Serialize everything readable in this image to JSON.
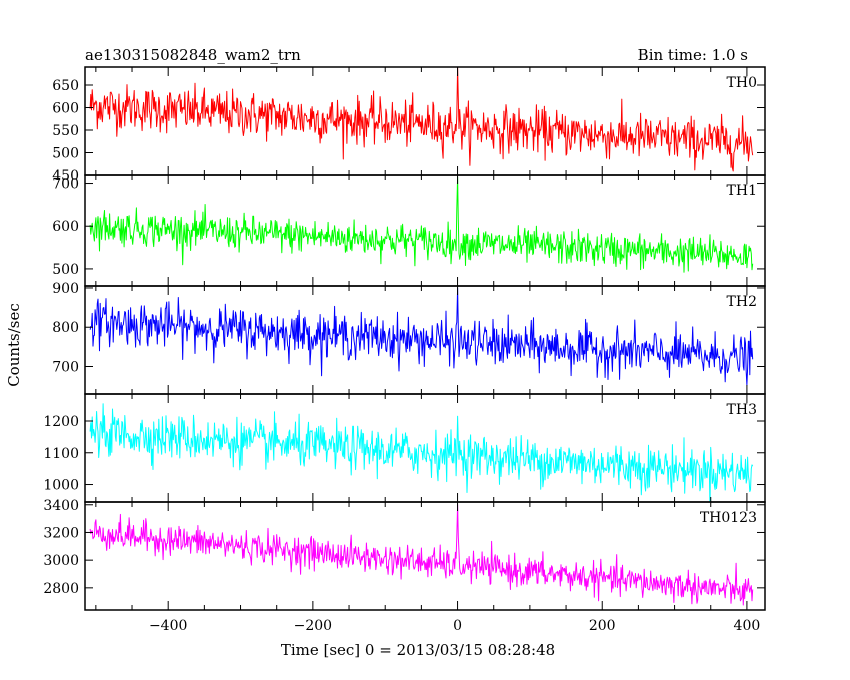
{
  "chart_data": {
    "type": "line",
    "title": "ae130315082848_wam2_trn",
    "subtitle": "Bin time: 1.0 s",
    "xlabel": "Time [sec] 0 = 2013/03/15 08:28:48",
    "ylabel": "Counts/sec",
    "xlim": [
      -515,
      425
    ],
    "x_ticks": [
      -400,
      -200,
      0,
      200,
      400
    ],
    "x_tick_labels": [
      "−400",
      "−200",
      "0",
      "200",
      "400"
    ],
    "x_range": [
      -508,
      408
    ],
    "bin_time_s": 1.0,
    "grid": false,
    "panels": [
      {
        "name": "TH0",
        "color": "#ff0000",
        "ylim": [
          450,
          690
        ],
        "y_ticks": [
          450,
          500,
          550,
          600,
          650
        ],
        "y_tick_labels": [
          "450",
          "500",
          "550",
          "600",
          "650"
        ],
        "mean_start": 605,
        "mean_end": 520,
        "noise_sd": 25,
        "peak_x": 0,
        "peak_value": 690
      },
      {
        "name": "TH1",
        "color": "#00ff00",
        "ylim": [
          460,
          720
        ],
        "y_ticks": [
          500,
          600,
          700
        ],
        "y_tick_labels": [
          "500",
          "600",
          "700"
        ],
        "mean_start": 600,
        "mean_end": 530,
        "noise_sd": 20,
        "peak_x": 0,
        "peak_value": 715
      },
      {
        "name": "TH2",
        "color": "#0000ff",
        "ylim": [
          630,
          905
        ],
        "y_ticks": [
          700,
          800,
          900
        ],
        "y_tick_labels": [
          "700",
          "800",
          "900"
        ],
        "mean_start": 815,
        "mean_end": 720,
        "noise_sd": 28,
        "peak_x": 0,
        "peak_value": 900
      },
      {
        "name": "TH3",
        "color": "#00ffff",
        "ylim": [
          945,
          1285
        ],
        "y_ticks": [
          1000,
          1100,
          1200
        ],
        "y_tick_labels": [
          "1000",
          "1100",
          "1200"
        ],
        "mean_start": 1165,
        "mean_end": 1035,
        "noise_sd": 35,
        "peak_x": 0,
        "peak_value": 1215
      },
      {
        "name": "TH0123",
        "color": "#ff00ff",
        "ylim": [
          2640,
          3420
        ],
        "y_ticks": [
          2800,
          3000,
          3200,
          3400
        ],
        "y_tick_labels": [
          "2800",
          "3000",
          "3200",
          "3400"
        ],
        "mean_start": 3200,
        "mean_end": 2770,
        "noise_sd": 55,
        "peak_x": 0,
        "peak_value": 3400
      }
    ]
  }
}
